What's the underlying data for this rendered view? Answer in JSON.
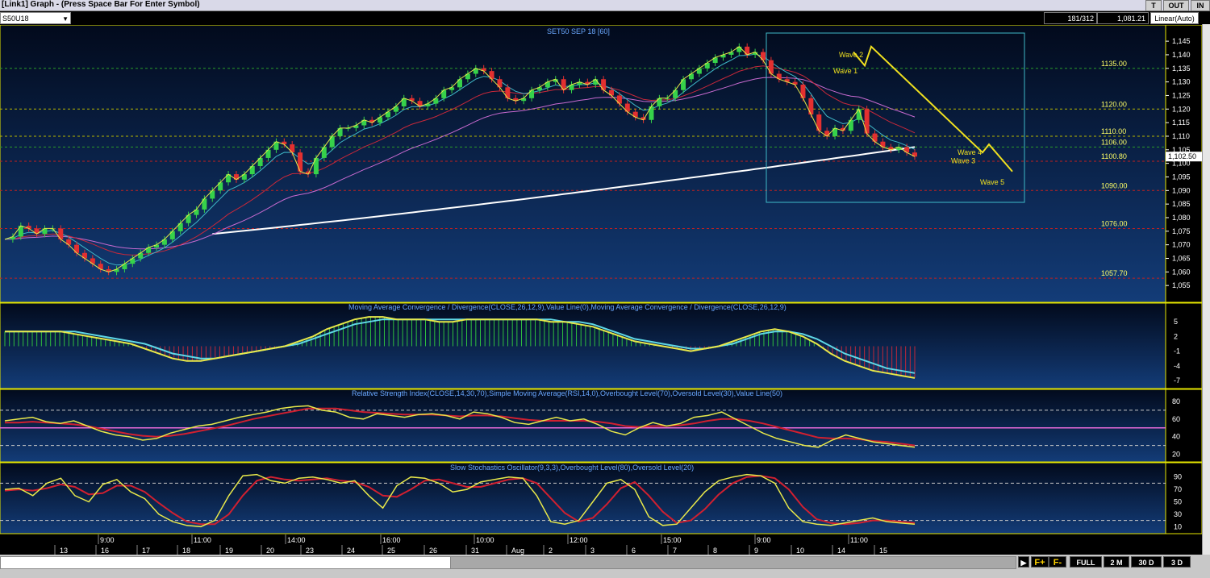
{
  "window": {
    "title": "[Link1] Graph  - (Press Space Bar For Enter Symbol)",
    "buttons": [
      "T",
      "OUT",
      "IN"
    ]
  },
  "toolbar": {
    "symbol": "S50U18",
    "bar_count": "181/312",
    "cursor_value": "1,081.21",
    "scale_mode": "Linear(Auto)"
  },
  "chart_data": [
    {
      "type": "candlestick",
      "title": "SET50 SEP 18  [60]",
      "ylim": [
        1050,
        1148
      ],
      "yticks": [
        1055,
        1060,
        1065,
        1070,
        1075,
        1080,
        1085,
        1090,
        1095,
        1100,
        1105,
        1110,
        1115,
        1120,
        1125,
        1130,
        1135,
        1140,
        1145
      ],
      "ytick_labels": [
        "1,055",
        "1,060",
        "1,065",
        "1,070",
        "1,075",
        "1,080",
        "1,085",
        "1,090",
        "1,095",
        "1,100",
        "1,105",
        "1,110",
        "1,115",
        "1,120",
        "1,125",
        "1,130",
        "1,135",
        "1,140",
        "1,145"
      ],
      "levels": [
        {
          "label": "1135.00",
          "value": 1135.0,
          "color": "#2a9a2a"
        },
        {
          "label": "1120.00",
          "value": 1120.0,
          "color": "#b8b800"
        },
        {
          "label": "1110.00",
          "value": 1110.0,
          "color": "#b8b800"
        },
        {
          "label": "1106.00",
          "value": 1106.0,
          "color": "#2a9a2a"
        },
        {
          "label": "1100.80",
          "value": 1100.8,
          "color": "#c02020"
        },
        {
          "label": "1090.00",
          "value": 1090.0,
          "color": "#c02020"
        },
        {
          "label": "1076.00",
          "value": 1076.0,
          "color": "#c02020"
        },
        {
          "label": "1057.70",
          "value": 1057.7,
          "color": "#c02020"
        }
      ],
      "last_price": "1,102.50",
      "close_path": [
        1072,
        1073,
        1077,
        1076,
        1074,
        1076,
        1076,
        1072,
        1070,
        1067,
        1065,
        1063,
        1061,
        1060,
        1061,
        1063,
        1065,
        1067,
        1069,
        1070,
        1072,
        1075,
        1078,
        1081,
        1083,
        1087,
        1090,
        1093,
        1096,
        1094,
        1096,
        1099,
        1102,
        1105,
        1108,
        1107,
        1104,
        1097,
        1096,
        1102,
        1106,
        1110,
        1113,
        1113,
        1114,
        1116,
        1115,
        1117,
        1119,
        1121,
        1124,
        1123,
        1121,
        1122,
        1124,
        1127,
        1128,
        1131,
        1133,
        1135,
        1134,
        1131,
        1128,
        1124,
        1123,
        1124,
        1127,
        1128,
        1130,
        1131,
        1127,
        1129,
        1130,
        1129,
        1131,
        1127,
        1125,
        1122,
        1119,
        1117,
        1116,
        1121,
        1124,
        1124,
        1127,
        1131,
        1133,
        1135,
        1137,
        1139,
        1140,
        1141,
        1143,
        1140,
        1141,
        1138,
        1133,
        1131,
        1130,
        1129,
        1124,
        1118,
        1112,
        1110,
        1113,
        1112,
        1116,
        1120,
        1111,
        1108,
        1106,
        1105,
        1106,
        1104,
        1102.5
      ],
      "waves": [
        {
          "label": "Wave 1",
          "value": 1134
        },
        {
          "label": "Wave 2",
          "value": 1140
        },
        {
          "label": "Wave 3",
          "value": 1101
        },
        {
          "label": "Wave 4",
          "value": 1104
        },
        {
          "label": "Wave 5",
          "value": 1093
        }
      ],
      "x_ticks": [
        "13",
        "16",
        "17",
        "18",
        "19",
        "20",
        "23",
        "24",
        "25",
        "26",
        "31",
        "Aug",
        "2",
        "3",
        "6",
        "7",
        "8",
        "9",
        "10",
        "14",
        "15"
      ],
      "x_time_labels": [
        "9:00",
        "11:00",
        "14:00",
        "16:00",
        "10:00",
        "12:00",
        "15:00",
        "9:00",
        "11:00"
      ]
    },
    {
      "type": "histogram+line",
      "title": "Moving Average Convergence / Divergence(CLOSE,26,12,9),Value Line(0),Moving Average Convergence / Divergence(CLOSE,26,12,9)",
      "ylim": [
        -8,
        8
      ],
      "yticks": [
        5,
        2,
        -1,
        -4,
        -7
      ],
      "ytick_labels": [
        "5",
        "2",
        "-1",
        "-4",
        "-7"
      ],
      "macd": [
        3,
        3,
        3,
        3,
        3,
        2.5,
        2,
        1.5,
        1,
        0.5,
        -0.5,
        -1.5,
        -2.5,
        -3,
        -3,
        -2.5,
        -2,
        -1.5,
        -1,
        -0.5,
        0,
        1,
        2,
        3.5,
        4.5,
        5.5,
        6,
        6,
        5.5,
        5.5,
        5.5,
        5,
        5,
        5.5,
        5.5,
        5.5,
        5.5,
        5.5,
        5.5,
        5,
        5,
        4.5,
        4,
        3,
        2,
        1,
        0.5,
        0,
        -0.5,
        -1,
        -0.5,
        0,
        1,
        2,
        3,
        3.5,
        3,
        2,
        0.5,
        -1.5,
        -3,
        -4,
        -5,
        -5.5,
        -6,
        -6.5
      ],
      "signal": [
        3,
        3,
        3,
        3,
        3,
        3,
        2.5,
        2,
        1.5,
        1,
        0.5,
        -0.5,
        -1.5,
        -2,
        -2.5,
        -2.5,
        -2,
        -1.5,
        -1,
        -0.5,
        0,
        0.5,
        1.5,
        2.5,
        3.5,
        4.5,
        5,
        5.5,
        5.5,
        5.5,
        5.5,
        5.5,
        5.5,
        5.5,
        5.5,
        5.5,
        5.5,
        5.5,
        5.5,
        5.5,
        5,
        5,
        4.5,
        3.5,
        2.5,
        1.5,
        1,
        0.5,
        0,
        -0.5,
        -0.5,
        0,
        0.5,
        1.5,
        2.5,
        3,
        3,
        2.5,
        1.5,
        0,
        -1.5,
        -2.5,
        -3.5,
        -4.5,
        -5,
        -5.5
      ]
    },
    {
      "type": "line",
      "title": "Relative Strength Index(CLOSE,14,30,70),Simple Moving Average(RSI,14,0),Overbought Level(70),Oversold Level(30),Value Line(50)",
      "ylim": [
        15,
        90
      ],
      "yticks": [
        80,
        60,
        40,
        20
      ],
      "ytick_labels": [
        "80",
        "60",
        "40",
        "20"
      ],
      "levels": [
        70,
        50,
        30
      ],
      "rsi": [
        58,
        60,
        62,
        57,
        55,
        58,
        52,
        46,
        42,
        40,
        36,
        38,
        44,
        48,
        52,
        54,
        58,
        62,
        65,
        68,
        72,
        74,
        75,
        70,
        68,
        62,
        60,
        66,
        64,
        62,
        65,
        66,
        64,
        60,
        68,
        66,
        62,
        56,
        54,
        58,
        62,
        58,
        60,
        54,
        46,
        42,
        50,
        56,
        52,
        55,
        62,
        64,
        68,
        60,
        52,
        44,
        38,
        34,
        30,
        28,
        36,
        42,
        38,
        34,
        32,
        30,
        28
      ],
      "rsi_sma": [
        56,
        56,
        57,
        56,
        55,
        54,
        52,
        49,
        46,
        43,
        41,
        40,
        41,
        43,
        46,
        49,
        52,
        56,
        60,
        63,
        66,
        69,
        72,
        72,
        72,
        70,
        68,
        67,
        66,
        65,
        65,
        65,
        64,
        63,
        64,
        64,
        63,
        61,
        59,
        58,
        58,
        58,
        58,
        57,
        55,
        52,
        51,
        52,
        52,
        53,
        55,
        58,
        60,
        60,
        58,
        55,
        51,
        47,
        43,
        39,
        38,
        38,
        37,
        35,
        34,
        32,
        30
      ]
    },
    {
      "type": "line",
      "title": "Slow Stochastics Oscillator(9,3,3),Overbought Level(80),Oversold Level(20)",
      "ylim": [
        0,
        100
      ],
      "yticks": [
        90,
        70,
        50,
        30,
        10
      ],
      "ytick_labels": [
        "90",
        "70",
        "50",
        "30",
        "10"
      ],
      "levels": [
        80,
        20
      ],
      "k": [
        70,
        72,
        60,
        80,
        88,
        60,
        50,
        78,
        86,
        66,
        55,
        30,
        18,
        12,
        10,
        20,
        60,
        92,
        94,
        84,
        80,
        88,
        90,
        86,
        80,
        84,
        60,
        40,
        76,
        90,
        88,
        80,
        66,
        70,
        82,
        86,
        90,
        88,
        60,
        18,
        14,
        20,
        50,
        80,
        86,
        70,
        26,
        12,
        14,
        40,
        66,
        84,
        90,
        94,
        92,
        80,
        40,
        18,
        14,
        12,
        16,
        20,
        24,
        18,
        16,
        14
      ],
      "d": [
        68,
        70,
        68,
        72,
        78,
        74,
        62,
        64,
        76,
        76,
        66,
        48,
        32,
        18,
        14,
        14,
        30,
        60,
        84,
        90,
        86,
        84,
        86,
        88,
        84,
        82,
        74,
        60,
        58,
        70,
        84,
        86,
        80,
        74,
        74,
        80,
        86,
        88,
        80,
        56,
        32,
        18,
        24,
        46,
        72,
        82,
        60,
        34,
        16,
        20,
        38,
        62,
        80,
        90,
        92,
        88,
        70,
        42,
        22,
        16,
        14,
        16,
        20,
        20,
        18,
        16
      ]
    }
  ],
  "footer": {
    "buttons": [
      "F+",
      "F-",
      "FULL",
      "2 M",
      "30 D",
      "3 D"
    ]
  },
  "colors": {
    "up_candle": "#36d24a",
    "down_candle": "#e33030",
    "price_line": "#e8e84a",
    "ema_fast": "#3fb9c8",
    "ema_mid": "#c8283a",
    "ema_slow": "#c86ad0",
    "sma_long": "#ffffff",
    "box": "#3fb9c8",
    "wave": "#f0e020"
  }
}
